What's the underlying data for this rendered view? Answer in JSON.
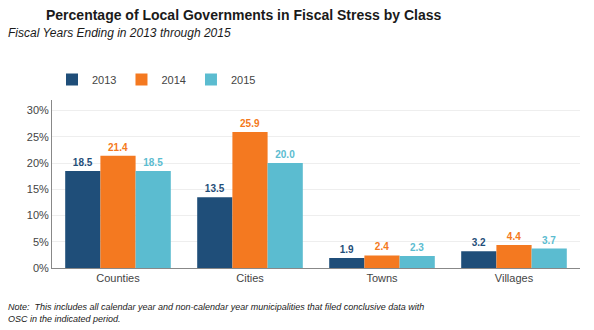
{
  "chart_data": {
    "type": "bar",
    "title": "Percentage of Local Governments in Fiscal Stress by Class",
    "subtitle": "Fiscal Years Ending in 2013 through 2015",
    "note": "Note:  This includes all calendar year and non-calendar year municipalities that filed conclusive data with\nOSC in the indicated period.",
    "categories": [
      "Counties",
      "Cities",
      "Towns",
      "Villages"
    ],
    "series": [
      {
        "name": "2013",
        "color": "#1f4e79",
        "values": [
          18.5,
          13.5,
          1.9,
          3.2
        ]
      },
      {
        "name": "2014",
        "color": "#f47920",
        "values": [
          21.4,
          25.9,
          2.4,
          4.4
        ]
      },
      {
        "name": "2015",
        "color": "#5bbcd0",
        "values": [
          18.5,
          20.0,
          2.3,
          3.7
        ],
        "value_labels": [
          "18.5",
          "20.0",
          "2.3",
          "3.7"
        ]
      }
    ],
    "ylim": [
      0,
      32
    ],
    "yticks": [
      {
        "value": 0,
        "label": "0%"
      },
      {
        "value": 5,
        "label": "5%"
      },
      {
        "value": 10,
        "label": "10%"
      },
      {
        "value": 15,
        "label": "15%"
      },
      {
        "value": 20,
        "label": "20%"
      },
      {
        "value": 25,
        "label": "25%"
      },
      {
        "value": 30,
        "label": "30%"
      }
    ],
    "grid": true,
    "data_labels": true,
    "legend": "upper left"
  }
}
